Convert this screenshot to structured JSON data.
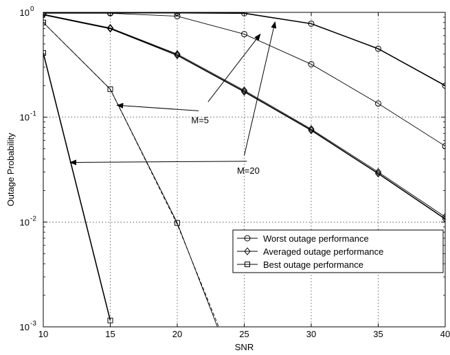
{
  "chart_data": {
    "type": "line",
    "xlabel": "SNR",
    "ylabel": "Outage Probability",
    "xlim": [
      10,
      40
    ],
    "ylim": [
      0.001,
      1
    ],
    "yscale": "log",
    "grid": true,
    "legend_position": "lower-right",
    "x_ticks": [
      "10",
      "15",
      "20",
      "25",
      "30",
      "35",
      "40"
    ],
    "y_ticks": [
      {
        "value": 1,
        "base": "10",
        "exp": "0"
      },
      {
        "value": 0.1,
        "base": "10",
        "exp": "-1"
      },
      {
        "value": 0.01,
        "base": "10",
        "exp": "-2"
      },
      {
        "value": 0.001,
        "base": "10",
        "exp": "-3"
      }
    ],
    "series": [
      {
        "name": "Worst outage performance",
        "marker": "circle",
        "linewidth": 1.6,
        "x": [
          10,
          15,
          20,
          25,
          30,
          35,
          40
        ],
        "y": [
          0.99,
          0.99,
          0.99,
          0.98,
          0.78,
          0.45,
          0.2
        ]
      },
      {
        "name": "",
        "marker": "circle",
        "linewidth": 0.9,
        "x": [
          10,
          15,
          20,
          25,
          30,
          35,
          40
        ],
        "y": [
          0.98,
          0.98,
          0.92,
          0.62,
          0.32,
          0.135,
          0.053
        ]
      },
      {
        "name": "Averaged outage performance",
        "marker": "diamond",
        "linewidth": 1.6,
        "x": [
          10,
          15,
          20,
          25,
          30,
          35,
          40
        ],
        "y": [
          0.95,
          0.7,
          0.39,
          0.175,
          0.075,
          0.029,
          0.0107
        ]
      },
      {
        "name": "",
        "marker": "diamond",
        "linewidth": 0.9,
        "x": [
          10,
          15,
          20,
          25,
          30,
          35,
          40
        ],
        "y": [
          0.96,
          0.71,
          0.4,
          0.18,
          0.077,
          0.03,
          0.0112
        ]
      },
      {
        "name": "Best outage performance",
        "marker": "square",
        "linewidth": 1.6,
        "x": [
          10,
          15
        ],
        "y": [
          0.41,
          0.00115
        ]
      },
      {
        "name": "",
        "marker": "square",
        "linewidth": 0.9,
        "x": [
          10,
          15,
          20,
          23
        ],
        "y": [
          0.8,
          0.185,
          0.0098,
          0.001
        ]
      },
      {
        "name": "",
        "marker": "none",
        "linewidth": 0.9,
        "dash": true,
        "x": [
          10,
          15,
          20,
          23.1
        ],
        "y": [
          0.8,
          0.185,
          0.0095,
          0.001
        ]
      }
    ],
    "annotations": [
      {
        "text": "M=5",
        "arrows": [
          {
            "from": [
              21.6,
              0.115
            ],
            "to": [
              15.5,
              0.13
            ]
          },
          {
            "from": [
              22.3,
              0.14
            ],
            "to": [
              26.2,
              0.62
            ]
          }
        ]
      },
      {
        "text": "M=20",
        "arrows": [
          {
            "from": [
              25.2,
              0.038
            ],
            "to": [
              12.0,
              0.037
            ]
          },
          {
            "from": [
              25.0,
              0.043
            ],
            "to": [
              27.3,
              0.81
            ]
          }
        ]
      }
    ]
  }
}
